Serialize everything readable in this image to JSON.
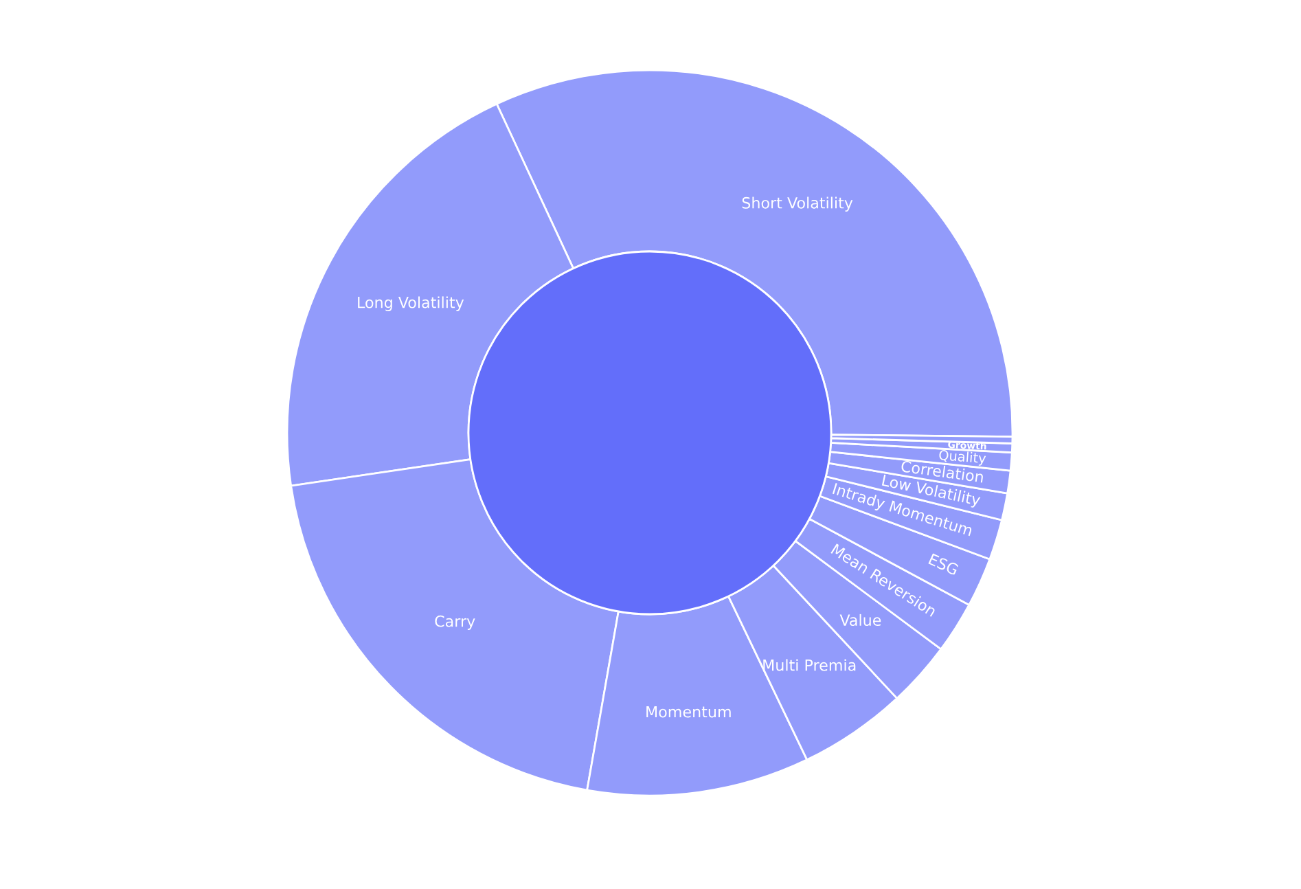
{
  "chart_data": {
    "type": "donut",
    "categories": [
      "Short Volatility",
      "Long Volatility",
      "Carry",
      "Momentum",
      "Multi Premia",
      "Value",
      "Mean Reversion",
      "ESG",
      "Intrady Momentum",
      "Low Volatility",
      "Correlation",
      "Quality",
      "Growth",
      null
    ],
    "values": [
      32.1,
      20.4,
      19.9,
      9.9,
      4.8,
      2.9,
      2.3,
      2.2,
      1.8,
      1.2,
      1.0,
      0.8,
      0.4,
      0.3
    ],
    "colors": [
      "#929bfb",
      "#929bfb",
      "#929bfb",
      "#929bfb",
      "#929bfb",
      "#929bfb",
      "#929bfb",
      "#929bfb",
      "#929bfb",
      "#929bfb",
      "#929bfb",
      "#929bfb",
      "#929bfb",
      "#929bfb"
    ]
  }
}
